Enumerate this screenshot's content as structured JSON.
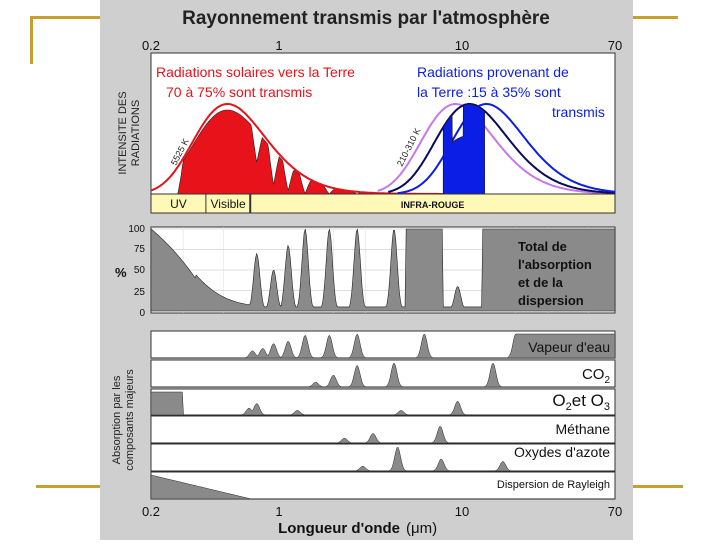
{
  "chart_data": {
    "type": "area",
    "title": "Rayonnement transmis par l'atmosphère",
    "xscale": "log",
    "xlim": [
      0.2,
      70
    ],
    "xticks": [
      "0.2",
      "1",
      "10",
      "70"
    ],
    "xlabel": "Longueur d'onde",
    "xunit": "(μm)",
    "panel1": {
      "ylabel_line1": "INTENSITE DES",
      "ylabel_line2": "RADIATIONS",
      "solar_label_line1": "Radiations solaires vers la Terre",
      "solar_label_line2": "70 à 75% sont transmis",
      "earth_label_line1": "Radiations provenant de",
      "earth_label_line2": "la Terre :15 à 35% sont",
      "earth_label_line3": "transmis",
      "sun_temperature": "5525 K",
      "earth_temperature": "210-310 K",
      "bands": [
        {
          "label": "UV",
          "from": 0.2,
          "to": 0.4
        },
        {
          "label": "Visible",
          "from": 0.4,
          "to": 0.7
        },
        {
          "label": "INFRA-ROUGE",
          "from": 0.7,
          "to": 70
        }
      ],
      "colors": {
        "solar": "#e8121a",
        "earth": "#0a1ee6",
        "earth_dark": "#0a0a5a",
        "earth_light": "#c878e6",
        "band": "#fff9b8"
      }
    },
    "panel2": {
      "ylabel": "%",
      "yticks": [
        "0",
        "25",
        "50",
        "75",
        "100"
      ],
      "ylim": [
        0,
        100
      ],
      "title_line1": "Total de",
      "title_line2": "l'absorption",
      "title_line3": "et de la",
      "title_line4": "dispersion",
      "absorption_peaks": [
        {
          "x": 0.2,
          "y": 100
        },
        {
          "x": 0.3,
          "y": 60
        },
        {
          "x": 0.5,
          "y": 5
        },
        {
          "x": 0.76,
          "y": 70
        },
        {
          "x": 0.94,
          "y": 50
        },
        {
          "x": 1.13,
          "y": 80
        },
        {
          "x": 1.4,
          "y": 100
        },
        {
          "x": 1.9,
          "y": 100
        },
        {
          "x": 2.7,
          "y": 100
        },
        {
          "x": 4.3,
          "y": 100
        },
        {
          "x": 6.3,
          "y": 100
        },
        {
          "x": 9.6,
          "y": 30
        },
        {
          "x": 15,
          "y": 100
        },
        {
          "x": 70,
          "y": 100
        }
      ]
    },
    "components": {
      "ylabel_line1": "Absorption par les",
      "ylabel_line2": "composants majeurs",
      "series": [
        {
          "name": "Vapeur d'eau",
          "peaks": [
            [
              0.72,
              0.3
            ],
            [
              0.82,
              0.4
            ],
            [
              0.94,
              0.6
            ],
            [
              1.13,
              0.7
            ],
            [
              1.4,
              0.95
            ],
            [
              1.9,
              0.95
            ],
            [
              2.7,
              1.0
            ],
            [
              6.3,
              1.0
            ],
            [
              20,
              1.0
            ]
          ]
        },
        {
          "name": "CO2",
          "peaks": [
            [
              1.6,
              0.2
            ],
            [
              2.0,
              0.5
            ],
            [
              2.7,
              0.9
            ],
            [
              4.3,
              1.0
            ],
            [
              15,
              1.0
            ]
          ]
        },
        {
          "name": "O2 et O3",
          "peaks": [
            [
              0.25,
              1.0
            ],
            [
              0.69,
              0.3
            ],
            [
              0.76,
              0.5
            ],
            [
              1.27,
              0.2
            ],
            [
              4.7,
              0.2
            ],
            [
              9.6,
              0.6
            ]
          ]
        },
        {
          "name": "Méthane",
          "peaks": [
            [
              2.3,
              0.2
            ],
            [
              3.3,
              0.4
            ],
            [
              7.7,
              0.7
            ]
          ]
        },
        {
          "name": "Oxydes d'azote",
          "peaks": [
            [
              2.9,
              0.2
            ],
            [
              4.5,
              1.0
            ],
            [
              7.8,
              0.5
            ],
            [
              17,
              0.4
            ]
          ]
        },
        {
          "name": "Dispersion de Rayleigh",
          "peaks": [
            [
              0.2,
              1.0
            ],
            [
              0.5,
              0.1
            ]
          ]
        }
      ]
    }
  },
  "labels": {
    "co2_main": "CO",
    "co2_sub": "2",
    "o2o3_a": "O",
    "o2o3_a_sub": "2",
    "o2o3_mid": "et O",
    "o2o3_b_sub": "3"
  }
}
